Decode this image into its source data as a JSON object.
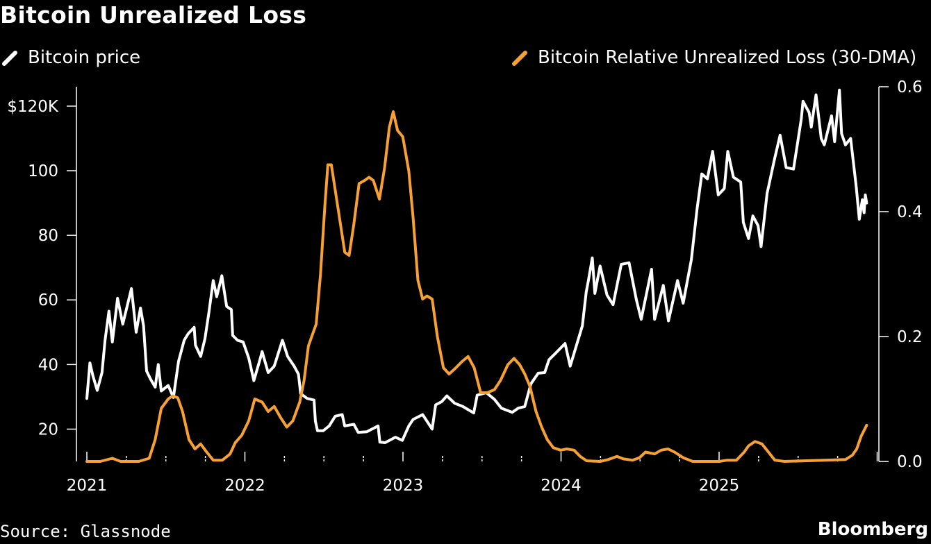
{
  "title": "Bitcoin Unrealized Loss",
  "source": "Source: Glassnode",
  "brand": "Bloomberg",
  "colors": {
    "background": "#000000",
    "price": "#ffffff",
    "loss": "#f7a034",
    "axis": "#ffffff"
  },
  "chart_data": {
    "type": "line",
    "legend": [
      {
        "name": "Bitcoin price",
        "color": "#ffffff"
      },
      {
        "name": "Bitcoin Relative Unrealized Loss (30-DMA)",
        "color": "#f7a034"
      }
    ],
    "x_ticks": [
      "2021",
      "2022",
      "2023",
      "2024",
      "2025"
    ],
    "left_axis": {
      "ticks": [
        {
          "value": 20,
          "label": "20"
        },
        {
          "value": 40,
          "label": "40"
        },
        {
          "value": 60,
          "label": "60"
        },
        {
          "value": 80,
          "label": "80"
        },
        {
          "value": 100,
          "label": "100"
        },
        {
          "value": 120,
          "label": "$120K"
        }
      ],
      "range": [
        10,
        126
      ]
    },
    "right_axis": {
      "ticks": [
        {
          "value": 0.0,
          "label": "0.0"
        },
        {
          "value": 0.2,
          "label": "0.2"
        },
        {
          "value": 0.4,
          "label": "0.4"
        },
        {
          "value": 0.6,
          "label": "0.6"
        }
      ],
      "range": [
        0,
        0.6
      ]
    },
    "legend_placement": "top",
    "grid": false,
    "series": [
      {
        "name": "Bitcoin price",
        "axis": "left",
        "points": [
          [
            "2021-01-01",
            29.5
          ],
          [
            "2021-01-08",
            40.5
          ],
          [
            "2021-01-15",
            36.5
          ],
          [
            "2021-01-25",
            32.0
          ],
          [
            "2021-02-05",
            37.5
          ],
          [
            "2021-02-12",
            47.5
          ],
          [
            "2021-02-21",
            56.5
          ],
          [
            "2021-03-01",
            47.0
          ],
          [
            "2021-03-13",
            60.5
          ],
          [
            "2021-03-25",
            52.5
          ],
          [
            "2021-04-05",
            58.5
          ],
          [
            "2021-04-14",
            63.5
          ],
          [
            "2021-04-25",
            50.0
          ],
          [
            "2021-05-05",
            57.5
          ],
          [
            "2021-05-12",
            52.0
          ],
          [
            "2021-05-19",
            38.0
          ],
          [
            "2021-05-28",
            35.5
          ],
          [
            "2021-06-08",
            33.0
          ],
          [
            "2021-06-15",
            40.0
          ],
          [
            "2021-06-22",
            31.8
          ],
          [
            "2021-07-08",
            33.5
          ],
          [
            "2021-07-20",
            29.8
          ],
          [
            "2021-08-01",
            41.0
          ],
          [
            "2021-08-14",
            47.5
          ],
          [
            "2021-08-23",
            49.5
          ],
          [
            "2021-09-06",
            51.5
          ],
          [
            "2021-09-09",
            46.0
          ],
          [
            "2021-09-21",
            42.5
          ],
          [
            "2021-10-01",
            48.0
          ],
          [
            "2021-10-10",
            56.0
          ],
          [
            "2021-10-20",
            66.0
          ],
          [
            "2021-10-28",
            61.0
          ],
          [
            "2021-11-09",
            67.5
          ],
          [
            "2021-11-20",
            58.0
          ],
          [
            "2021-12-01",
            57.0
          ],
          [
            "2021-12-04",
            49.0
          ],
          [
            "2021-12-15",
            47.5
          ],
          [
            "2021-12-28",
            47.0
          ],
          [
            "2022-01-10",
            42.0
          ],
          [
            "2022-01-22",
            35.0
          ],
          [
            "2022-02-05",
            41.5
          ],
          [
            "2022-02-10",
            44.0
          ],
          [
            "2022-02-24",
            37.5
          ],
          [
            "2022-03-10",
            39.5
          ],
          [
            "2022-03-29",
            47.5
          ],
          [
            "2022-04-10",
            42.5
          ],
          [
            "2022-04-25",
            39.5
          ],
          [
            "2022-05-05",
            37.0
          ],
          [
            "2022-05-10",
            31.0
          ],
          [
            "2022-05-25",
            29.5
          ],
          [
            "2022-06-10",
            29.0
          ],
          [
            "2022-06-13",
            22.5
          ],
          [
            "2022-06-18",
            19.5
          ],
          [
            "2022-07-01",
            19.5
          ],
          [
            "2022-07-15",
            21.0
          ],
          [
            "2022-07-29",
            24.0
          ],
          [
            "2022-08-14",
            24.5
          ],
          [
            "2022-08-20",
            21.0
          ],
          [
            "2022-09-10",
            21.5
          ],
          [
            "2022-09-20",
            19.0
          ],
          [
            "2022-10-10",
            19.2
          ],
          [
            "2022-10-29",
            20.5
          ],
          [
            "2022-11-05",
            21.0
          ],
          [
            "2022-11-09",
            16.0
          ],
          [
            "2022-11-21",
            15.8
          ],
          [
            "2022-12-15",
            17.5
          ],
          [
            "2022-12-31",
            16.5
          ],
          [
            "2023-01-15",
            21.0
          ],
          [
            "2023-01-25",
            23.0
          ],
          [
            "2023-02-16",
            24.5
          ],
          [
            "2023-03-10",
            20.0
          ],
          [
            "2023-03-18",
            27.5
          ],
          [
            "2023-04-01",
            28.5
          ],
          [
            "2023-04-13",
            30.3
          ],
          [
            "2023-05-01",
            28.0
          ],
          [
            "2023-05-20",
            27.0
          ],
          [
            "2023-06-14",
            25.0
          ],
          [
            "2023-06-22",
            30.5
          ],
          [
            "2023-07-13",
            31.3
          ],
          [
            "2023-08-01",
            29.2
          ],
          [
            "2023-08-17",
            26.5
          ],
          [
            "2023-09-11",
            25.2
          ],
          [
            "2023-09-25",
            26.5
          ],
          [
            "2023-10-10",
            27.0
          ],
          [
            "2023-10-24",
            34.0
          ],
          [
            "2023-11-10",
            37.3
          ],
          [
            "2023-11-25",
            37.5
          ],
          [
            "2023-12-05",
            41.5
          ],
          [
            "2023-12-20",
            43.5
          ],
          [
            "2024-01-11",
            46.5
          ],
          [
            "2024-01-23",
            39.5
          ],
          [
            "2024-02-10",
            47.5
          ],
          [
            "2024-02-20",
            52.0
          ],
          [
            "2024-02-29",
            62.5
          ],
          [
            "2024-03-05",
            66.0
          ],
          [
            "2024-03-14",
            73.0
          ],
          [
            "2024-03-20",
            62.0
          ],
          [
            "2024-04-01",
            70.5
          ],
          [
            "2024-04-17",
            61.5
          ],
          [
            "2024-05-01",
            58.5
          ],
          [
            "2024-05-20",
            71.0
          ],
          [
            "2024-06-07",
            71.5
          ],
          [
            "2024-06-24",
            60.0
          ],
          [
            "2024-07-05",
            54.0
          ],
          [
            "2024-07-29",
            69.5
          ],
          [
            "2024-08-05",
            54.0
          ],
          [
            "2024-08-25",
            64.5
          ],
          [
            "2024-09-06",
            53.5
          ],
          [
            "2024-09-27",
            66.0
          ],
          [
            "2024-10-10",
            59.0
          ],
          [
            "2024-10-29",
            72.5
          ],
          [
            "2024-11-11",
            88.0
          ],
          [
            "2024-11-22",
            99.0
          ],
          [
            "2024-12-05",
            97.5
          ],
          [
            "2024-12-17",
            106.0
          ],
          [
            "2024-12-30",
            92.5
          ],
          [
            "2025-01-13",
            94.5
          ],
          [
            "2025-01-21",
            106.0
          ],
          [
            "2025-02-03",
            98.0
          ],
          [
            "2025-02-20",
            96.5
          ],
          [
            "2025-02-26",
            84.0
          ],
          [
            "2025-03-10",
            79.0
          ],
          [
            "2025-03-20",
            86.0
          ],
          [
            "2025-04-01",
            83.0
          ],
          [
            "2025-04-08",
            76.5
          ],
          [
            "2025-04-22",
            93.0
          ],
          [
            "2025-05-09",
            103.5
          ],
          [
            "2025-05-22",
            111.0
          ],
          [
            "2025-06-05",
            101.0
          ],
          [
            "2025-06-22",
            100.5
          ],
          [
            "2025-07-10",
            116.0
          ],
          [
            "2025-07-14",
            121.5
          ],
          [
            "2025-07-28",
            118.0
          ],
          [
            "2025-08-02",
            113.5
          ],
          [
            "2025-08-13",
            123.5
          ],
          [
            "2025-08-25",
            110.0
          ],
          [
            "2025-09-01",
            108.0
          ],
          [
            "2025-09-18",
            117.0
          ],
          [
            "2025-09-25",
            109.0
          ],
          [
            "2025-10-06",
            125.0
          ],
          [
            "2025-10-11",
            111.5
          ],
          [
            "2025-10-20",
            108.0
          ],
          [
            "2025-11-01",
            110.0
          ],
          [
            "2025-11-14",
            95.0
          ],
          [
            "2025-11-21",
            85.0
          ],
          [
            "2025-11-28",
            91.0
          ],
          [
            "2025-12-02",
            87.0
          ],
          [
            "2025-12-05",
            92.5
          ],
          [
            "2025-12-08",
            90.0
          ]
        ]
      },
      {
        "name": "Bitcoin Relative Unrealized Loss (30-DMA)",
        "axis": "right",
        "points": [
          [
            "2021-01-01",
            0.0
          ],
          [
            "2021-02-01",
            0.0
          ],
          [
            "2021-03-01",
            0.005
          ],
          [
            "2021-03-20",
            0.0
          ],
          [
            "2021-05-01",
            0.0
          ],
          [
            "2021-05-25",
            0.005
          ],
          [
            "2021-06-08",
            0.035
          ],
          [
            "2021-06-22",
            0.085
          ],
          [
            "2021-07-08",
            0.1
          ],
          [
            "2021-07-18",
            0.105
          ],
          [
            "2021-07-30",
            0.102
          ],
          [
            "2021-08-10",
            0.08
          ],
          [
            "2021-08-25",
            0.035
          ],
          [
            "2021-09-08",
            0.02
          ],
          [
            "2021-09-21",
            0.028
          ],
          [
            "2021-10-05",
            0.015
          ],
          [
            "2021-10-20",
            0.002
          ],
          [
            "2021-11-10",
            0.002
          ],
          [
            "2021-11-28",
            0.012
          ],
          [
            "2021-12-10",
            0.03
          ],
          [
            "2021-12-25",
            0.042
          ],
          [
            "2022-01-10",
            0.065
          ],
          [
            "2022-01-24",
            0.1
          ],
          [
            "2022-02-10",
            0.095
          ],
          [
            "2022-02-24",
            0.08
          ],
          [
            "2022-03-10",
            0.088
          ],
          [
            "2022-03-25",
            0.07
          ],
          [
            "2022-04-08",
            0.055
          ],
          [
            "2022-04-22",
            0.065
          ],
          [
            "2022-05-08",
            0.095
          ],
          [
            "2022-05-18",
            0.13
          ],
          [
            "2022-05-28",
            0.185
          ],
          [
            "2022-06-15",
            0.22
          ],
          [
            "2022-06-25",
            0.3
          ],
          [
            "2022-07-05",
            0.41
          ],
          [
            "2022-07-12",
            0.475
          ],
          [
            "2022-07-20",
            0.475
          ],
          [
            "2022-07-30",
            0.43
          ],
          [
            "2022-08-10",
            0.38
          ],
          [
            "2022-08-20",
            0.335
          ],
          [
            "2022-08-30",
            0.33
          ],
          [
            "2022-09-10",
            0.38
          ],
          [
            "2022-09-22",
            0.445
          ],
          [
            "2022-10-05",
            0.45
          ],
          [
            "2022-10-15",
            0.455
          ],
          [
            "2022-10-25",
            0.45
          ],
          [
            "2022-11-08",
            0.42
          ],
          [
            "2022-11-20",
            0.47
          ],
          [
            "2022-12-01",
            0.535
          ],
          [
            "2022-12-10",
            0.56
          ],
          [
            "2022-12-20",
            0.53
          ],
          [
            "2023-01-01",
            0.52
          ],
          [
            "2023-01-15",
            0.465
          ],
          [
            "2023-01-25",
            0.39
          ],
          [
            "2023-02-05",
            0.29
          ],
          [
            "2023-02-16",
            0.26
          ],
          [
            "2023-02-26",
            0.265
          ],
          [
            "2023-03-10",
            0.26
          ],
          [
            "2023-03-22",
            0.2
          ],
          [
            "2023-04-05",
            0.15
          ],
          [
            "2023-04-18",
            0.14
          ],
          [
            "2023-05-01",
            0.148
          ],
          [
            "2023-05-18",
            0.16
          ],
          [
            "2023-06-01",
            0.168
          ],
          [
            "2023-06-15",
            0.15
          ],
          [
            "2023-06-30",
            0.11
          ],
          [
            "2023-07-15",
            0.11
          ],
          [
            "2023-08-01",
            0.115
          ],
          [
            "2023-08-15",
            0.13
          ],
          [
            "2023-09-01",
            0.155
          ],
          [
            "2023-09-15",
            0.165
          ],
          [
            "2023-09-28",
            0.155
          ],
          [
            "2023-10-10",
            0.14
          ],
          [
            "2023-10-22",
            0.12
          ],
          [
            "2023-11-05",
            0.08
          ],
          [
            "2023-11-18",
            0.055
          ],
          [
            "2023-12-01",
            0.035
          ],
          [
            "2023-12-15",
            0.022
          ],
          [
            "2024-01-01",
            0.018
          ],
          [
            "2024-01-15",
            0.02
          ],
          [
            "2024-02-01",
            0.018
          ],
          [
            "2024-02-15",
            0.008
          ],
          [
            "2024-03-01",
            0.001
          ],
          [
            "2024-04-01",
            0.0
          ],
          [
            "2024-04-20",
            0.003
          ],
          [
            "2024-05-10",
            0.008
          ],
          [
            "2024-05-25",
            0.004
          ],
          [
            "2024-06-15",
            0.002
          ],
          [
            "2024-07-01",
            0.006
          ],
          [
            "2024-07-15",
            0.015
          ],
          [
            "2024-08-05",
            0.012
          ],
          [
            "2024-08-20",
            0.018
          ],
          [
            "2024-09-05",
            0.02
          ],
          [
            "2024-09-20",
            0.015
          ],
          [
            "2024-10-10",
            0.006
          ],
          [
            "2024-11-01",
            0.0
          ],
          [
            "2025-01-01",
            0.0
          ],
          [
            "2025-01-20",
            0.002
          ],
          [
            "2025-02-10",
            0.002
          ],
          [
            "2025-02-28",
            0.015
          ],
          [
            "2025-03-10",
            0.025
          ],
          [
            "2025-03-25",
            0.032
          ],
          [
            "2025-04-10",
            0.028
          ],
          [
            "2025-04-25",
            0.015
          ],
          [
            "2025-05-10",
            0.002
          ],
          [
            "2025-06-01",
            0.0
          ],
          [
            "2025-09-01",
            0.002
          ],
          [
            "2025-10-20",
            0.003
          ],
          [
            "2025-11-05",
            0.01
          ],
          [
            "2025-11-15",
            0.02
          ],
          [
            "2025-11-25",
            0.04
          ],
          [
            "2025-12-08",
            0.058
          ]
        ]
      }
    ]
  }
}
